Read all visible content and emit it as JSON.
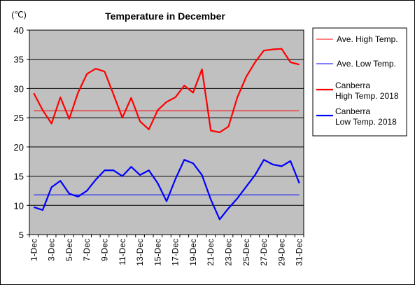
{
  "chart_data": {
    "type": "line",
    "title": "Temperature in December",
    "ylabel": "(℃)",
    "xlabel": "",
    "ylim": [
      5,
      40
    ],
    "yticks": [
      5,
      10,
      15,
      20,
      25,
      30,
      35,
      40
    ],
    "grid": true,
    "legend_position": "right",
    "background": "#c0c0c0",
    "x": [
      "1-Dec",
      "2-Dec",
      "3-Dec",
      "4-Dec",
      "5-Dec",
      "6-Dec",
      "7-Dec",
      "8-Dec",
      "9-Dec",
      "10-Dec",
      "11-Dec",
      "12-Dec",
      "13-Dec",
      "14-Dec",
      "15-Dec",
      "16-Dec",
      "17-Dec",
      "18-Dec",
      "19-Dec",
      "20-Dec",
      "21-Dec",
      "22-Dec",
      "23-Dec",
      "24-Dec",
      "25-Dec",
      "26-Dec",
      "27-Dec",
      "28-Dec",
      "29-Dec",
      "30-Dec",
      "31-Dec"
    ],
    "xticklabels": [
      "1-Dec",
      "3-Dec",
      "5-Dec",
      "7-Dec",
      "9-Dec",
      "11-Dec",
      "13-Dec",
      "15-Dec",
      "17-Dec",
      "19-Dec",
      "21-Dec",
      "23-Dec",
      "25-Dec",
      "27-Dec",
      "29-Dec",
      "31-Dec"
    ],
    "series": [
      {
        "name": "Ave. High Temp.",
        "color": "#ff0000",
        "width": "thin",
        "values": [
          26.2,
          26.2,
          26.2,
          26.2,
          26.2,
          26.2,
          26.2,
          26.2,
          26.2,
          26.2,
          26.2,
          26.2,
          26.2,
          26.2,
          26.2,
          26.2,
          26.2,
          26.2,
          26.2,
          26.2,
          26.2,
          26.2,
          26.2,
          26.2,
          26.2,
          26.2,
          26.2,
          26.2,
          26.2,
          26.2,
          26.2
        ]
      },
      {
        "name": "Ave. Low Temp.",
        "color": "#0000ff",
        "width": "thin",
        "values": [
          11.8,
          11.8,
          11.8,
          11.8,
          11.8,
          11.8,
          11.8,
          11.8,
          11.8,
          11.8,
          11.8,
          11.8,
          11.8,
          11.8,
          11.8,
          11.8,
          11.8,
          11.8,
          11.8,
          11.8,
          11.8,
          11.8,
          11.8,
          11.8,
          11.8,
          11.8,
          11.8,
          11.8,
          11.8,
          11.8,
          11.8
        ]
      },
      {
        "name": "Canberra High Temp. 2018",
        "legend_lines": [
          "Canberra",
          "High Temp. 2018"
        ],
        "color": "#ff0000",
        "width": "thick",
        "values": [
          29.2,
          26.3,
          24.0,
          28.5,
          24.8,
          29.3,
          32.5,
          33.4,
          32.9,
          29.0,
          25.0,
          28.4,
          24.4,
          23.0,
          26.3,
          27.7,
          28.5,
          30.5,
          29.3,
          33.3,
          22.8,
          22.5,
          23.5,
          28.5,
          32.0,
          34.5,
          36.5,
          36.7,
          36.8,
          34.5,
          34.1
        ]
      },
      {
        "name": "Canberra Low Temp. 2018",
        "legend_lines": [
          "Canberra",
          "Low Temp. 2018"
        ],
        "color": "#0000ff",
        "width": "thick",
        "values": [
          9.7,
          9.2,
          13.1,
          14.2,
          12.0,
          11.5,
          12.5,
          14.4,
          16.0,
          16.0,
          15.0,
          16.6,
          15.2,
          16.0,
          13.8,
          10.7,
          14.5,
          17.8,
          17.2,
          15.2,
          11.0,
          7.6,
          9.5,
          11.2,
          13.2,
          15.2,
          17.8,
          17.0,
          16.7,
          17.6,
          13.8
        ]
      }
    ]
  }
}
